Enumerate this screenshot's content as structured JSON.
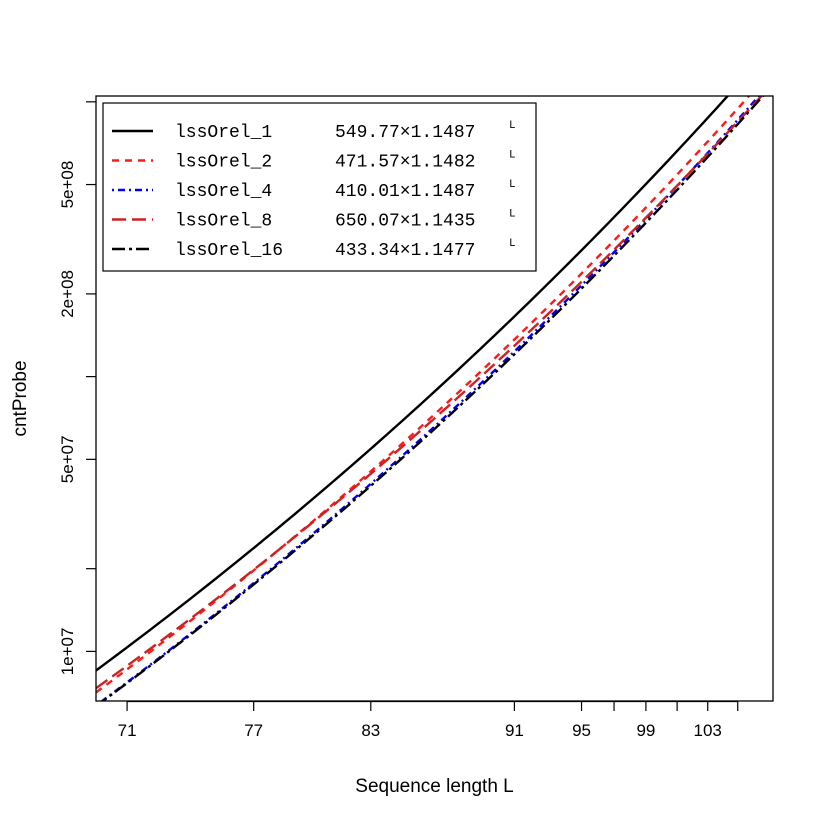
{
  "chart_data": {
    "type": "line",
    "xlabel": "Sequence length L",
    "ylabel": "cntProbe",
    "y_scale": "log",
    "x_scale": "log",
    "xlim": [
      69.6,
      107.4
    ],
    "ylim": [
      6600000,
      1050000000
    ],
    "x_ticks": [
      71,
      77,
      83,
      91,
      95,
      99,
      103
    ],
    "x_minor_ticks": [
      97,
      101,
      105
    ],
    "x_tick_labels": [
      "71",
      "77",
      "83",
      "91",
      "95",
      "99",
      "103"
    ],
    "y_ticks": [
      10000000,
      50000000,
      200000000,
      500000000
    ],
    "y_minor_ticks": [
      20000000,
      100000000,
      1000000000
    ],
    "y_tick_labels": [
      "1e+07",
      "5e+07",
      "2e+08",
      "5e+08"
    ],
    "legend_position": "top-left",
    "series": [
      {
        "name": "lssOrel_1",
        "formula": "549.77×1.1487",
        "exponent": "L",
        "coef": 549.77,
        "base": 1.1487,
        "color": "#000000",
        "dash": "",
        "width": 2.4
      },
      {
        "name": "lssOrel_2",
        "formula": "471.57×1.1482",
        "exponent": "L",
        "coef": 471.57,
        "base": 1.1482,
        "color": "#ff1a1a",
        "dash": "7,6",
        "width": 2.4
      },
      {
        "name": "lssOrel_4",
        "formula": "410.01×1.1487",
        "exponent": "L",
        "coef": 410.01,
        "base": 1.1487,
        "color": "#0000ff",
        "dash": "2,4,7,4",
        "width": 2.4
      },
      {
        "name": "lssOrel_8",
        "formula": "650.07×1.1435",
        "exponent": "L",
        "coef": 650.07,
        "base": 1.1435,
        "color": "#d02020",
        "dash": "14,6",
        "width": 2.4
      },
      {
        "name": "lssOrel_16",
        "formula": "433.34×1.1477",
        "exponent": "L",
        "coef": 433.34,
        "base": 1.1477,
        "color": "#000000",
        "dash": "13,4,3,4",
        "width": 2.4
      }
    ]
  }
}
